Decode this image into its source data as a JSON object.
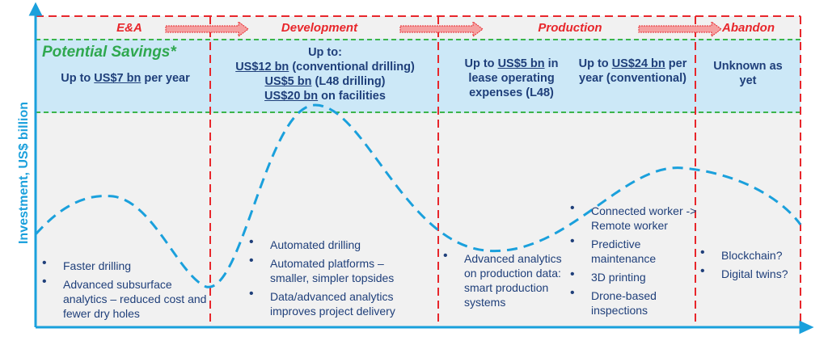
{
  "y_axis_label": "Investment, US$ billion",
  "phases": [
    "E&A",
    "Development",
    "Production",
    "Abandon"
  ],
  "potential_savings_title": "Potential Savings*",
  "savings": {
    "ea": {
      "pre": "Up to ",
      "amount": "US$7 bn",
      "post": " per year"
    },
    "dev": {
      "head": "Up to:",
      "l1a": "US$12 bn",
      "l1b": " (conventional drilling)",
      "l2a": "US$5 bn",
      "l2b": " (L48 drilling)",
      "l3a": "US$20 bn",
      "l3b": " on facilities"
    },
    "prod1": {
      "pre": "Up to ",
      "amount": "US$5 bn",
      "post": " in lease operating expenses (L48)"
    },
    "prod2": {
      "pre": "Up to ",
      "amount": "US$24 bn",
      "post": " per year (conventional)"
    },
    "abandon": "Unknown as yet"
  },
  "bullets": {
    "ea": [
      "Faster drilling",
      "Advanced subsurface analytics – reduced cost and fewer dry holes"
    ],
    "dev": [
      "Automated drilling",
      "Automated platforms – smaller, simpler topsides",
      "Data/advanced analytics improves project delivery"
    ],
    "prod1": [
      "Advanced analytics on production data: smart production systems"
    ],
    "prod2": [
      "Connected worker -> Remote worker",
      "Predictive maintenance",
      "3D printing",
      "Drone-based inspections"
    ],
    "abandon": [
      "Blockchain?",
      "Digital twins?"
    ]
  },
  "colors": {
    "phase": "#e8262b",
    "axis": "#1aa0dc",
    "curve": "#1aa0dc",
    "text": "#1f3f7a",
    "savings_title": "#2fa84f",
    "band": "#cce8f7"
  }
}
